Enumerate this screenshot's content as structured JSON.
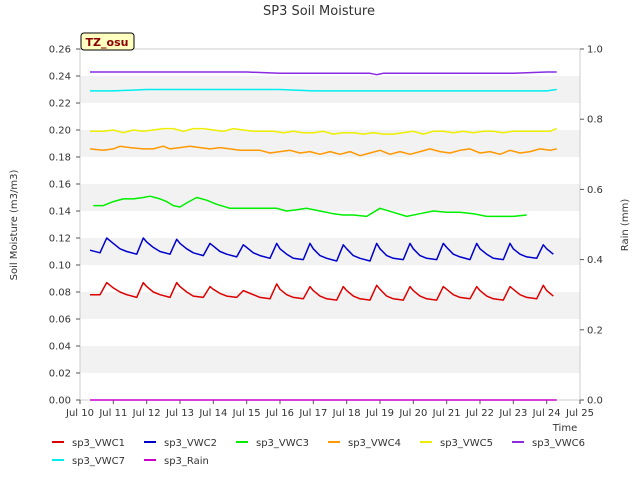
{
  "chart_data": {
    "type": "line",
    "title": "SP3 Soil Moisture",
    "xlabel": "Time",
    "ylabel": "Soil Moisture (m3/m3)",
    "y2label": "Rain (mm)",
    "badge": "TZ_osu",
    "grid": true,
    "legend_position": "bottom",
    "xlim": [
      10,
      25
    ],
    "ylim": [
      0,
      0.26
    ],
    "y2lim": [
      0,
      1.0
    ],
    "x_ticks": [
      10,
      11,
      12,
      13,
      14,
      15,
      16,
      17,
      18,
      19,
      20,
      21,
      22,
      23,
      24,
      25
    ],
    "x_tick_labels": [
      "Jul 10",
      "Jul 11",
      "Jul 12",
      "Jul 13",
      "Jul 14",
      "Jul 15",
      "Jul 16",
      "Jul 17",
      "Jul 18",
      "Jul 19",
      "Jul 20",
      "Jul 21",
      "Jul 22",
      "Jul 23",
      "Jul 24",
      "Jul 25"
    ],
    "y_ticks": [
      0,
      0.02,
      0.04,
      0.06,
      0.08,
      0.1,
      0.12,
      0.14,
      0.16,
      0.18,
      0.2,
      0.22,
      0.24,
      0.26
    ],
    "y_tick_labels": [
      "0.00",
      "0.02",
      "0.04",
      "0.06",
      "0.08",
      "0.10",
      "0.12",
      "0.14",
      "0.16",
      "0.18",
      "0.20",
      "0.22",
      "0.24",
      "0.26"
    ],
    "y2_ticks": [
      0,
      0.2,
      0.4,
      0.6,
      0.8,
      1.0
    ],
    "y2_tick_labels": [
      "0.0",
      "0.2",
      "0.4",
      "0.6",
      "0.8",
      "1.0"
    ],
    "series": [
      {
        "name": "sp3_VWC1",
        "color": "#dd0000",
        "axis": "left",
        "x": [
          10.3,
          10.6,
          10.8,
          11.0,
          11.2,
          11.4,
          11.7,
          11.9,
          12.0,
          12.2,
          12.4,
          12.7,
          12.9,
          13.0,
          13.2,
          13.4,
          13.7,
          13.9,
          14.0,
          14.2,
          14.4,
          14.7,
          14.9,
          15.0,
          15.2,
          15.4,
          15.7,
          15.9,
          16.0,
          16.2,
          16.4,
          16.7,
          16.9,
          17.0,
          17.2,
          17.4,
          17.7,
          17.9,
          18.0,
          18.2,
          18.4,
          18.7,
          18.9,
          19.0,
          19.2,
          19.4,
          19.7,
          19.9,
          20.0,
          20.2,
          20.4,
          20.7,
          20.9,
          21.0,
          21.2,
          21.4,
          21.7,
          21.9,
          22.0,
          22.2,
          22.4,
          22.7,
          22.9,
          23.0,
          23.2,
          23.4,
          23.7,
          23.9,
          24.0,
          24.2
        ],
        "y": [
          0.078,
          0.078,
          0.087,
          0.083,
          0.08,
          0.078,
          0.076,
          0.087,
          0.084,
          0.08,
          0.078,
          0.076,
          0.087,
          0.084,
          0.08,
          0.077,
          0.076,
          0.084,
          0.082,
          0.079,
          0.077,
          0.076,
          0.081,
          0.08,
          0.078,
          0.076,
          0.075,
          0.086,
          0.082,
          0.078,
          0.076,
          0.075,
          0.084,
          0.081,
          0.077,
          0.075,
          0.074,
          0.084,
          0.081,
          0.077,
          0.075,
          0.074,
          0.085,
          0.082,
          0.077,
          0.075,
          0.074,
          0.084,
          0.081,
          0.077,
          0.075,
          0.074,
          0.084,
          0.082,
          0.078,
          0.076,
          0.075,
          0.084,
          0.081,
          0.077,
          0.075,
          0.074,
          0.084,
          0.082,
          0.078,
          0.076,
          0.075,
          0.085,
          0.081,
          0.077
        ]
      },
      {
        "name": "sp3_VWC2",
        "color": "#0000cc",
        "axis": "left",
        "x": [
          10.3,
          10.6,
          10.8,
          11.0,
          11.2,
          11.4,
          11.7,
          11.9,
          12.0,
          12.2,
          12.4,
          12.7,
          12.9,
          13.0,
          13.2,
          13.4,
          13.7,
          13.9,
          14.0,
          14.2,
          14.4,
          14.7,
          14.9,
          15.0,
          15.2,
          15.4,
          15.7,
          15.9,
          16.0,
          16.2,
          16.4,
          16.7,
          16.9,
          17.0,
          17.2,
          17.4,
          17.7,
          17.9,
          18.0,
          18.2,
          18.4,
          18.7,
          18.9,
          19.0,
          19.2,
          19.4,
          19.7,
          19.9,
          20.0,
          20.2,
          20.4,
          20.7,
          20.9,
          21.0,
          21.2,
          21.4,
          21.7,
          21.9,
          22.0,
          22.2,
          22.4,
          22.7,
          22.9,
          23.0,
          23.2,
          23.4,
          23.7,
          23.9,
          24.0,
          24.2
        ],
        "y": [
          0.111,
          0.109,
          0.12,
          0.116,
          0.112,
          0.11,
          0.108,
          0.12,
          0.117,
          0.113,
          0.11,
          0.108,
          0.119,
          0.116,
          0.112,
          0.109,
          0.107,
          0.116,
          0.114,
          0.11,
          0.108,
          0.106,
          0.115,
          0.113,
          0.109,
          0.107,
          0.105,
          0.116,
          0.112,
          0.108,
          0.105,
          0.104,
          0.116,
          0.112,
          0.107,
          0.105,
          0.103,
          0.115,
          0.112,
          0.107,
          0.105,
          0.103,
          0.116,
          0.112,
          0.107,
          0.105,
          0.104,
          0.116,
          0.112,
          0.107,
          0.105,
          0.104,
          0.116,
          0.113,
          0.108,
          0.106,
          0.104,
          0.116,
          0.112,
          0.108,
          0.105,
          0.104,
          0.116,
          0.112,
          0.108,
          0.106,
          0.105,
          0.115,
          0.112,
          0.108
        ]
      },
      {
        "name": "sp3_VWC3",
        "color": "#00ee00",
        "axis": "left",
        "x": [
          10.4,
          10.7,
          11.0,
          11.3,
          11.6,
          11.9,
          12.1,
          12.4,
          12.6,
          12.8,
          13.0,
          13.2,
          13.5,
          13.8,
          14.1,
          14.5,
          14.9,
          15.1,
          15.3,
          15.6,
          15.9,
          16.2,
          16.5,
          16.8,
          17.2,
          17.6,
          17.9,
          18.2,
          18.6,
          19.0,
          19.4,
          19.8,
          20.2,
          20.6,
          21.0,
          21.4,
          21.8,
          22.2,
          22.6,
          23.0,
          23.4
        ],
        "y": [
          0.144,
          0.144,
          0.147,
          0.149,
          0.149,
          0.15,
          0.151,
          0.149,
          0.147,
          0.144,
          0.143,
          0.146,
          0.15,
          0.148,
          0.145,
          0.142,
          0.142,
          0.142,
          0.142,
          0.142,
          0.142,
          0.14,
          0.141,
          0.142,
          0.14,
          0.138,
          0.137,
          0.137,
          0.136,
          0.142,
          0.139,
          0.136,
          0.138,
          0.14,
          0.139,
          0.139,
          0.138,
          0.136,
          0.136,
          0.136,
          0.137
        ]
      },
      {
        "name": "sp3_VWC4",
        "color": "#ff9900",
        "axis": "left",
        "x": [
          10.3,
          10.7,
          11.0,
          11.2,
          11.5,
          11.9,
          12.2,
          12.5,
          12.7,
          13.0,
          13.3,
          13.6,
          13.9,
          14.2,
          14.5,
          14.8,
          15.1,
          15.4,
          15.7,
          16.0,
          16.3,
          16.6,
          16.9,
          17.2,
          17.5,
          17.8,
          18.1,
          18.4,
          18.7,
          19.0,
          19.3,
          19.6,
          19.9,
          20.2,
          20.5,
          20.8,
          21.1,
          21.4,
          21.7,
          22.0,
          22.3,
          22.6,
          22.9,
          23.2,
          23.5,
          23.8,
          24.1,
          24.3
        ],
        "y": [
          0.186,
          0.185,
          0.186,
          0.188,
          0.187,
          0.186,
          0.186,
          0.188,
          0.186,
          0.187,
          0.188,
          0.187,
          0.186,
          0.187,
          0.186,
          0.185,
          0.185,
          0.185,
          0.183,
          0.184,
          0.185,
          0.183,
          0.184,
          0.182,
          0.184,
          0.182,
          0.184,
          0.181,
          0.183,
          0.185,
          0.182,
          0.184,
          0.182,
          0.184,
          0.186,
          0.184,
          0.183,
          0.185,
          0.186,
          0.183,
          0.184,
          0.182,
          0.185,
          0.183,
          0.184,
          0.186,
          0.185,
          0.186
        ]
      },
      {
        "name": "sp3_VWC5",
        "color": "#eeee00",
        "axis": "left",
        "x": [
          10.3,
          10.7,
          11.0,
          11.3,
          11.6,
          11.9,
          12.2,
          12.5,
          12.8,
          13.1,
          13.4,
          13.7,
          14.0,
          14.3,
          14.6,
          14.9,
          15.2,
          15.5,
          15.8,
          16.1,
          16.4,
          16.7,
          17.0,
          17.3,
          17.6,
          17.9,
          18.2,
          18.5,
          18.8,
          19.1,
          19.4,
          19.7,
          20.0,
          20.3,
          20.6,
          20.9,
          21.2,
          21.5,
          21.8,
          22.1,
          22.4,
          22.7,
          23.0,
          23.3,
          23.6,
          23.9,
          24.1,
          24.3
        ],
        "y": [
          0.199,
          0.199,
          0.2,
          0.198,
          0.2,
          0.199,
          0.2,
          0.201,
          0.201,
          0.199,
          0.201,
          0.201,
          0.2,
          0.199,
          0.201,
          0.2,
          0.199,
          0.199,
          0.199,
          0.198,
          0.199,
          0.198,
          0.198,
          0.199,
          0.197,
          0.198,
          0.198,
          0.197,
          0.198,
          0.197,
          0.197,
          0.198,
          0.199,
          0.197,
          0.199,
          0.199,
          0.198,
          0.199,
          0.198,
          0.199,
          0.199,
          0.198,
          0.199,
          0.199,
          0.199,
          0.199,
          0.199,
          0.201
        ]
      },
      {
        "name": "sp3_VWC6",
        "color": "#8a2be2",
        "axis": "left",
        "x": [
          10.3,
          11.0,
          12.0,
          13.0,
          14.0,
          15.0,
          16.0,
          17.0,
          18.0,
          18.7,
          18.9,
          19.1,
          19.5,
          20.0,
          21.0,
          22.0,
          23.0,
          24.0,
          24.3
        ],
        "y": [
          0.243,
          0.243,
          0.243,
          0.243,
          0.243,
          0.243,
          0.242,
          0.242,
          0.242,
          0.242,
          0.241,
          0.242,
          0.242,
          0.242,
          0.242,
          0.242,
          0.242,
          0.243,
          0.243
        ]
      },
      {
        "name": "sp3_VWC7",
        "color": "#00eeee",
        "axis": "left",
        "x": [
          10.3,
          11.0,
          12.0,
          13.0,
          14.0,
          15.0,
          16.0,
          17.0,
          18.0,
          19.0,
          20.0,
          21.0,
          22.0,
          23.0,
          24.0,
          24.3
        ],
        "y": [
          0.229,
          0.229,
          0.23,
          0.23,
          0.23,
          0.23,
          0.23,
          0.229,
          0.229,
          0.229,
          0.229,
          0.229,
          0.229,
          0.229,
          0.229,
          0.23
        ]
      },
      {
        "name": "sp3_Rain",
        "color": "#cc00cc",
        "axis": "right",
        "x": [
          10.3,
          24.3
        ],
        "y": [
          0.0,
          0.0
        ]
      }
    ]
  }
}
